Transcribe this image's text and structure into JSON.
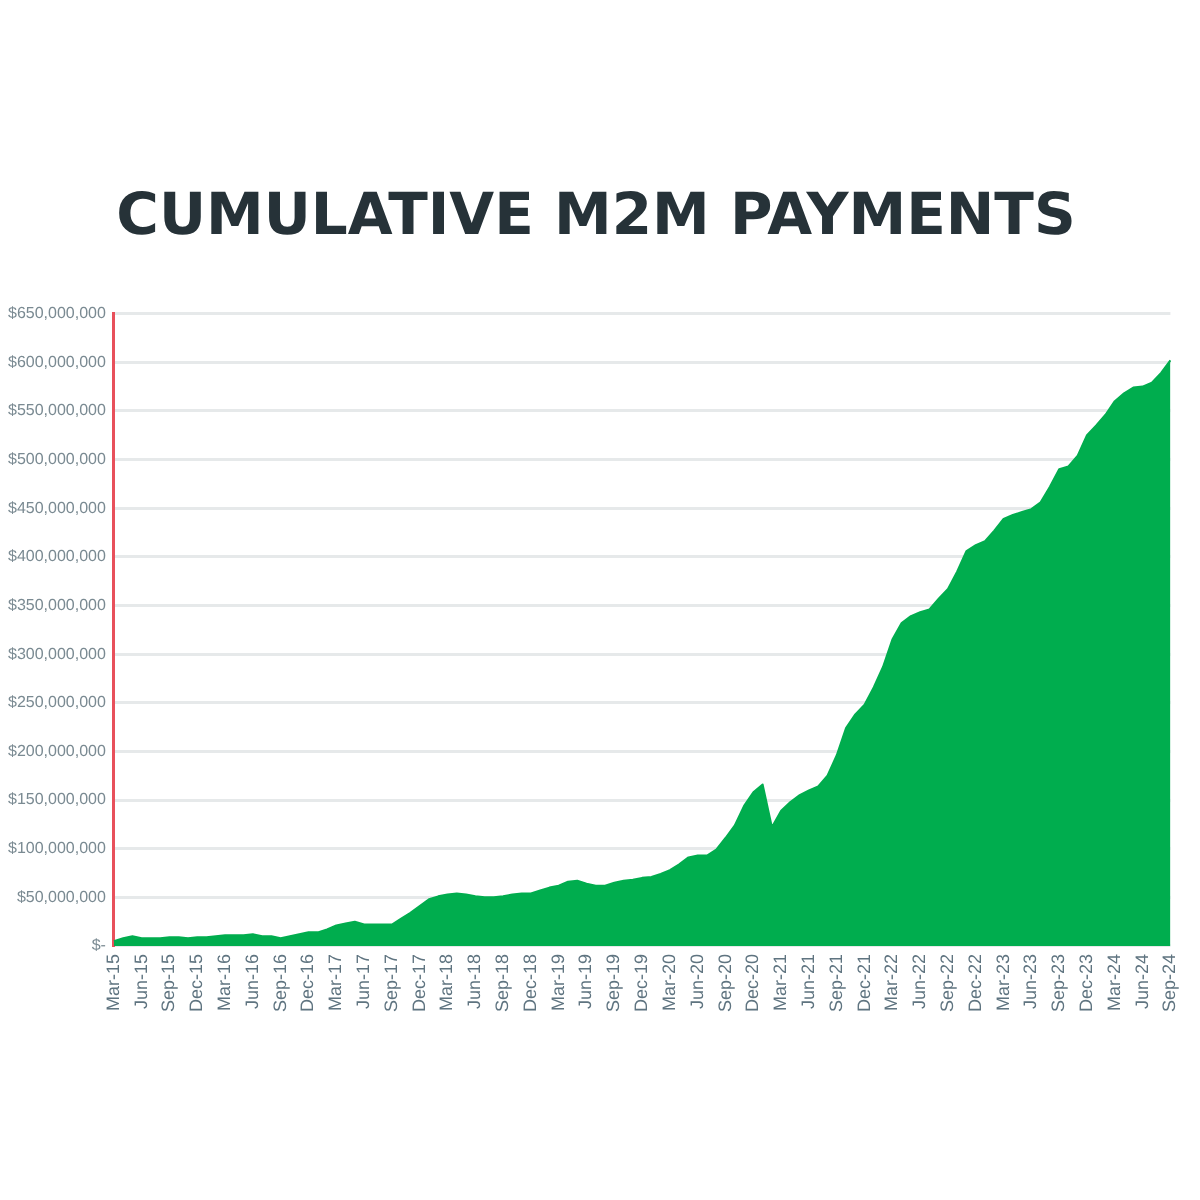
{
  "chart_data": {
    "type": "area",
    "title": "CUMULATIVE M2M PAYMENTS",
    "categories": [
      "Mar-15",
      null,
      null,
      "Jun-15",
      null,
      null,
      "Sep-15",
      null,
      null,
      "Dec-15",
      null,
      null,
      "Mar-16",
      null,
      null,
      "Jun-16",
      null,
      null,
      "Sep-16",
      null,
      null,
      "Dec-16",
      null,
      null,
      "Mar-17",
      null,
      null,
      "Jun-17",
      null,
      null,
      "Sep-17",
      null,
      null,
      "Dec-17",
      null,
      null,
      "Mar-18",
      null,
      null,
      "Jun-18",
      null,
      null,
      "Sep-18",
      null,
      null,
      "Dec-18",
      null,
      null,
      "Mar-19",
      null,
      null,
      "Jun-19",
      null,
      null,
      "Sep-19",
      null,
      null,
      "Dec-19",
      null,
      null,
      "Mar-20",
      null,
      null,
      "Jun-20",
      null,
      null,
      "Sep-20",
      null,
      null,
      "Dec-20",
      null,
      null,
      "Mar-21",
      null,
      null,
      "Jun-21",
      null,
      null,
      "Sep-21",
      null,
      null,
      "Dec-21",
      null,
      null,
      "Mar-22",
      null,
      null,
      "Jun-22",
      null,
      null,
      "Sep-22",
      null,
      null,
      "Dec-22",
      null,
      null,
      "Mar-23",
      null,
      null,
      "Jun-23",
      null,
      null,
      "Sep-23",
      null,
      null,
      "Dec-23",
      null,
      null,
      "Mar-24",
      null,
      null,
      "Jun-24",
      null,
      null,
      "Sep-24"
    ],
    "series": [
      {
        "color": "#00ad4e",
        "values": [
          5000000,
          8000000,
          10000000,
          8000000,
          8000000,
          8000000,
          9000000,
          9000000,
          8000000,
          9000000,
          9000000,
          10000000,
          11000000,
          11000000,
          11000000,
          12000000,
          10000000,
          10000000,
          8000000,
          10000000,
          12000000,
          14000000,
          14000000,
          17000000,
          21000000,
          23000000,
          25000000,
          22000000,
          22000000,
          22000000,
          22000000,
          28000000,
          34000000,
          41000000,
          48000000,
          51000000,
          53000000,
          54000000,
          53000000,
          51000000,
          50000000,
          50000000,
          51000000,
          53000000,
          54000000,
          54000000,
          57000000,
          60000000,
          62000000,
          66000000,
          67000000,
          64000000,
          62000000,
          62000000,
          65000000,
          67000000,
          68000000,
          70000000,
          71000000,
          74000000,
          78000000,
          84000000,
          91000000,
          93000000,
          93000000,
          99000000,
          111000000,
          124000000,
          144000000,
          158000000,
          166000000,
          122000000,
          139000000,
          148000000,
          155000000,
          160000000,
          164000000,
          175000000,
          196000000,
          224000000,
          238000000,
          248000000,
          266000000,
          287000000,
          315000000,
          332000000,
          339000000,
          343000000,
          346000000,
          357000000,
          367000000,
          385000000,
          406000000,
          412000000,
          416000000,
          427000000,
          439000000,
          443000000,
          446000000,
          449000000,
          456000000,
          472000000,
          490000000,
          493000000,
          504000000,
          525000000,
          535000000,
          546000000,
          560000000,
          568000000,
          574000000,
          575000000,
          579000000,
          589000000,
          602000000
        ]
      }
    ],
    "ylim": [
      0,
      650000000
    ],
    "yticks": [
      {
        "value": 0,
        "label": "$-"
      },
      {
        "value": 50000000,
        "label": "$50,000,000"
      },
      {
        "value": 100000000,
        "label": "$100,000,000"
      },
      {
        "value": 150000000,
        "label": "$150,000,000"
      },
      {
        "value": 200000000,
        "label": "$200,000,000"
      },
      {
        "value": 250000000,
        "label": "$250,000,000"
      },
      {
        "value": 300000000,
        "label": "$300,000,000"
      },
      {
        "value": 350000000,
        "label": "$350,000,000"
      },
      {
        "value": 400000000,
        "label": "$400,000,000"
      },
      {
        "value": 450000000,
        "label": "$450,000,000"
      },
      {
        "value": 500000000,
        "label": "$500,000,000"
      },
      {
        "value": 550000000,
        "label": "$550,000,000"
      },
      {
        "value": 600000000,
        "label": "$600,000,000"
      },
      {
        "value": 650000000,
        "label": "$650,000,000"
      }
    ],
    "grid": "y",
    "legend": false
  }
}
